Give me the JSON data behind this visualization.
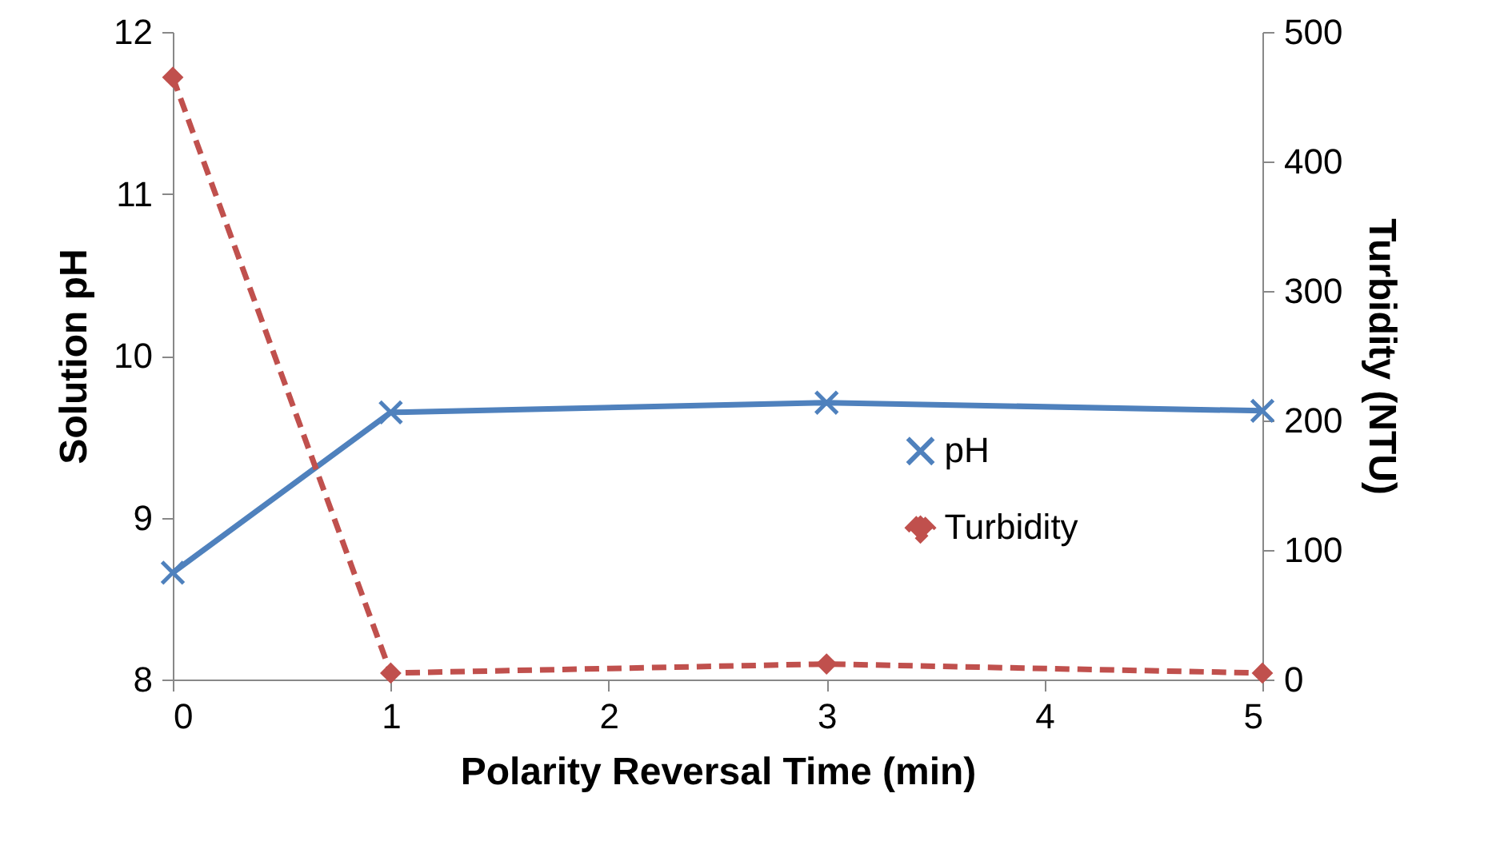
{
  "chart_data": {
    "type": "line",
    "xlabel": "Polarity Reversal Time (min)",
    "ylabel": "Solution pH",
    "y2label": "Turbidity (NTU)",
    "x": [
      0,
      1,
      3,
      5
    ],
    "xlim": [
      0,
      5
    ],
    "xticks": [
      0,
      1,
      2,
      3,
      4,
      5
    ],
    "ylim": [
      8,
      12
    ],
    "yticks": [
      8,
      9,
      10,
      11,
      12
    ],
    "y2lim": [
      0,
      500
    ],
    "y2ticks": [
      0,
      100,
      200,
      300,
      400,
      500
    ],
    "legend": "right",
    "grid": false,
    "series": [
      {
        "name": "pH",
        "color": "#4f81bd",
        "values": [
          8.66,
          9.65,
          9.71,
          9.66
        ],
        "marker": "cross",
        "line_style": "solid"
      },
      {
        "name": "Turbidity",
        "color": "#c0504d",
        "values": [
          465,
          5,
          12,
          5
        ],
        "marker": "diamond",
        "line_style": "dashed",
        "axis": "y2"
      }
    ]
  }
}
